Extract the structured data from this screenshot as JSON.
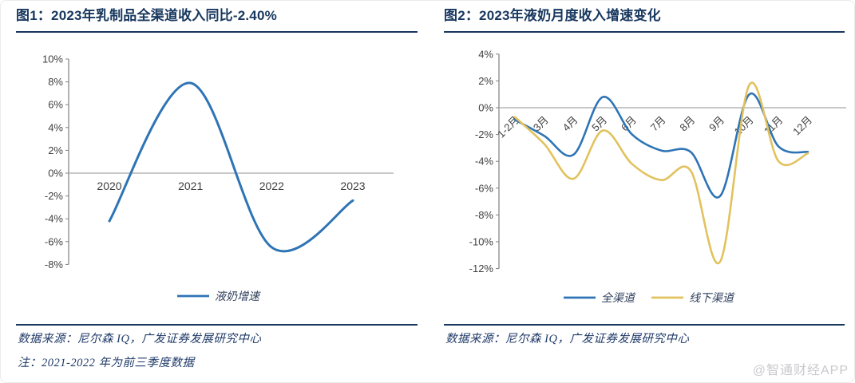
{
  "figure1": {
    "title": "图1：2023年乳制品全渠道收入同比-2.40%",
    "source": "数据来源：尼尔森 IQ，广发证券发展研究中心",
    "note": "注：2021-2022 年为前三季度数据"
  },
  "figure2": {
    "title": "图2：2023年液奶月度收入增速变化",
    "source": "数据来源：尼尔森 IQ，广发证券发展研究中心"
  },
  "watermark": "@智通财经APP",
  "colors": {
    "title_navy": "#17375e",
    "separator_navy": "#17375e",
    "axis_text": "#3f3f3f",
    "axis_line": "#808080",
    "zero_gridline": "#a8a8a8",
    "series_blue": "#2e74b5",
    "series_yellow": "#e2c25e",
    "legend_text": "#2f3f5c",
    "watermark_gray": "#c9c9cd"
  },
  "chart_data": [
    {
      "type": "line",
      "title": "图1：2023年乳制品全渠道收入同比-2.40%",
      "categories": [
        "2020",
        "2021",
        "2022",
        "2023"
      ],
      "series": [
        {
          "name": "液奶增速",
          "color": "#2e74b5",
          "values": [
            -4.2,
            7.9,
            -6.5,
            -2.4
          ]
        }
      ],
      "xlabel": "",
      "ylabel": "",
      "ylim": [
        -8,
        10
      ],
      "ytick_step": 2,
      "ytick_suffix": "%",
      "grid": "zero-line-only",
      "legend_position": "bottom",
      "smooth": true,
      "note": "2021-2022年为前三季度数据"
    },
    {
      "type": "line",
      "title": "图2：2023年液奶月度收入增速变化",
      "categories": [
        "1-2月",
        "3月",
        "4月",
        "5月",
        "6月",
        "7月",
        "8月",
        "9月",
        "10月",
        "11月",
        "12月"
      ],
      "series": [
        {
          "name": "全渠道",
          "color": "#2e74b5",
          "values": [
            -0.9,
            -2.1,
            -3.5,
            0.8,
            -2.0,
            -3.2,
            -3.3,
            -6.6,
            1.0,
            -2.9,
            -3.3
          ]
        },
        {
          "name": "线下渠道",
          "color": "#e2c25e",
          "values": [
            -0.7,
            -2.7,
            -5.3,
            -1.7,
            -4.2,
            -5.4,
            -4.7,
            -11.5,
            1.7,
            -4.0,
            -3.4
          ]
        }
      ],
      "xlabel": "",
      "ylabel": "",
      "ylim": [
        -12,
        4
      ],
      "ytick_step": 2,
      "ytick_suffix": "%",
      "xtick_rotation": -45,
      "grid": "zero-line-only",
      "legend_position": "bottom",
      "smooth": true
    }
  ]
}
